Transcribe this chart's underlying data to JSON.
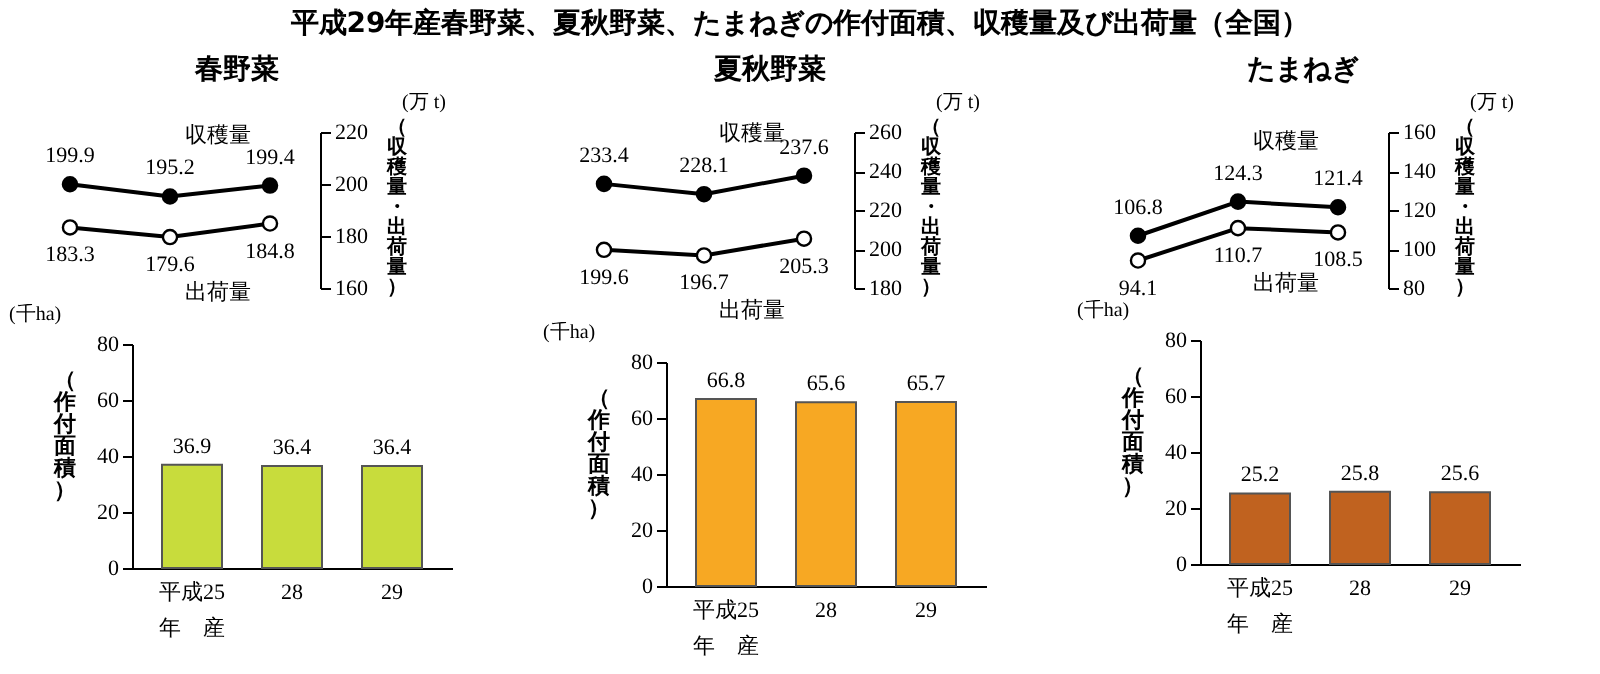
{
  "chart_data": [
    {
      "type": "other",
      "title": "平成29年産春野菜、夏秋野菜、たまねぎの作付面積、収穫量及び出荷量（全国）"
    },
    {
      "type": "line",
      "title": "春野菜",
      "categories": [
        null,
        null,
        null
      ],
      "series": [
        {
          "name": "収穫量",
          "color": "#000000",
          "values": [
            199.9,
            195.2,
            199.4
          ]
        },
        {
          "name": "出荷量",
          "color": "#000000",
          "values": [
            183.3,
            179.6,
            184.8
          ]
        }
      ],
      "ylabel": "（収穫量・出荷量）",
      "annotations": [
        "(万 t)"
      ],
      "ylim": [
        160,
        220
      ],
      "yticks": [
        160,
        180,
        200,
        220
      ],
      "tick_labels": "y",
      "data_labels": true,
      "marker": "circle"
    },
    {
      "type": "bar",
      "categories": [
        "平成25\n年　産",
        "28",
        "29"
      ],
      "values": [
        36.9,
        36.4,
        36.4
      ],
      "color": "#c8dc3c",
      "ylabel": "（作付面積）",
      "annotations": [
        "(千ha)"
      ],
      "ylim": [
        0,
        80
      ],
      "yticks": [
        0,
        20,
        40,
        60,
        80
      ],
      "data_labels": true
    },
    {
      "type": "line",
      "title": "夏秋野菜",
      "categories": [
        null,
        null,
        null
      ],
      "series": [
        {
          "name": "収穫量",
          "color": "#000000",
          "values": [
            233.4,
            228.1,
            237.6
          ]
        },
        {
          "name": "出荷量",
          "color": "#000000",
          "values": [
            199.6,
            196.7,
            205.3
          ]
        }
      ],
      "ylabel": "（収穫量・出荷量）",
      "annotations": [
        "(万 t)"
      ],
      "ylim": [
        180,
        260
      ],
      "yticks": [
        180,
        200,
        220,
        240,
        260
      ],
      "tick_labels": "y",
      "data_labels": true,
      "marker": "circle"
    },
    {
      "type": "bar",
      "categories": [
        "平成25\n年　産",
        "28",
        "29"
      ],
      "values": [
        66.8,
        65.6,
        65.7
      ],
      "color": "#f7a823",
      "ylabel": "（作付面積）",
      "annotations": [
        "(千ha)"
      ],
      "ylim": [
        0,
        80
      ],
      "yticks": [
        0,
        20,
        40,
        60,
        80
      ],
      "data_labels": true
    },
    {
      "type": "line",
      "title": "たまねぎ",
      "categories": [
        null,
        null,
        null
      ],
      "series": [
        {
          "name": "収穫量",
          "color": "#000000",
          "values": [
            106.8,
            124.3,
            121.4
          ]
        },
        {
          "name": "出荷量",
          "color": "#000000",
          "values": [
            94.1,
            110.7,
            108.5
          ]
        }
      ],
      "ylabel": "（収穫量・出荷量）",
      "annotations": [
        "(万 t)"
      ],
      "ylim": [
        80,
        160
      ],
      "yticks": [
        80,
        100,
        120,
        140,
        160
      ],
      "tick_labels": "y",
      "data_labels": true,
      "marker": "circle"
    },
    {
      "type": "bar",
      "categories": [
        "平成25\n年　産",
        "28",
        "29"
      ],
      "values": [
        25.2,
        25.8,
        25.6
      ],
      "color": "#c0621f",
      "ylabel": "（作付面積）",
      "annotations": [
        "(千ha)"
      ],
      "ylim": [
        0,
        80
      ],
      "yticks": [
        0,
        20,
        40,
        60,
        80
      ],
      "data_labels": true
    }
  ]
}
